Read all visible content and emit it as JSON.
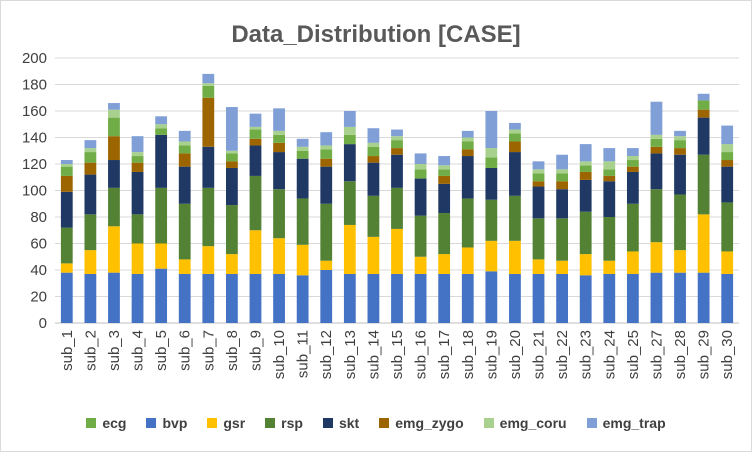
{
  "chart_data": {
    "type": "bar",
    "stacked": true,
    "title": "Data_Distribution [CASE]",
    "xlabel": "",
    "ylabel": "",
    "ylim": [
      0,
      200
    ],
    "yticks": [
      0,
      20,
      40,
      60,
      80,
      100,
      120,
      140,
      160,
      180,
      200
    ],
    "ytick_labels": [
      "0",
      "20",
      "40",
      "60",
      "80",
      "100",
      "120",
      "140",
      "160",
      "180",
      "200"
    ],
    "grid": true,
    "legend_position": "bottom",
    "categories": [
      "sub_1",
      "sub_2",
      "sub_3",
      "sub_4",
      "sub_5",
      "sub_6",
      "sub_7",
      "sub_8",
      "sub_9",
      "sub_10",
      "sub_11",
      "sub_12",
      "sub_13",
      "sub_14",
      "sub_15",
      "sub_16",
      "sub_17",
      "sub_18",
      "sub_19",
      "sub_20",
      "sub_21",
      "sub_22",
      "sub_23",
      "sub_24",
      "sub_25",
      "sub_27",
      "sub_28",
      "sub_29",
      "sub_30"
    ],
    "legend": [
      {
        "name": "ecg",
        "color": "#70ad47"
      },
      {
        "name": "bvp",
        "color": "#4472c4"
      },
      {
        "name": "gsr",
        "color": "#ffc000"
      },
      {
        "name": "rsp",
        "color": "#548235"
      },
      {
        "name": "skt",
        "color": "#203864"
      },
      {
        "name": "emg_zygo",
        "color": "#9c6500"
      },
      {
        "name": "emg_coru",
        "color": "#a9d18e"
      },
      {
        "name": "emg_trap",
        "color": "#7f9fd6"
      }
    ],
    "series": [
      {
        "name": "bvp",
        "color": "#4472c4",
        "values": [
          38,
          37,
          38,
          37,
          41,
          37,
          37,
          37,
          37,
          37,
          36,
          40,
          37,
          37,
          37,
          37,
          37,
          37,
          39,
          37,
          37,
          37,
          36,
          37,
          37,
          38,
          38,
          38,
          37
        ]
      },
      {
        "name": "gsr",
        "color": "#ffc000",
        "values": [
          7,
          18,
          35,
          23,
          19,
          11,
          21,
          15,
          33,
          27,
          23,
          7,
          37,
          28,
          34,
          13,
          15,
          20,
          23,
          25,
          11,
          10,
          16,
          10,
          17,
          23,
          17,
          44,
          17
        ]
      },
      {
        "name": "rsp",
        "color": "#548235",
        "values": [
          27,
          27,
          29,
          22,
          42,
          42,
          44,
          37,
          41,
          37,
          35,
          43,
          33,
          31,
          31,
          31,
          31,
          37,
          31,
          34,
          31,
          32,
          32,
          33,
          36,
          40,
          42,
          45,
          37
        ]
      },
      {
        "name": "skt",
        "color": "#203864",
        "values": [
          27,
          30,
          21,
          32,
          40,
          28,
          31,
          28,
          23,
          28,
          30,
          28,
          28,
          25,
          25,
          28,
          22,
          32,
          24,
          33,
          24,
          22,
          24,
          27,
          24,
          27,
          30,
          28,
          27
        ]
      },
      {
        "name": "emg_zygo",
        "color": "#9c6500",
        "values": [
          12,
          9,
          18,
          7,
          0,
          10,
          37,
          5,
          5,
          7,
          0,
          6,
          0,
          5,
          5,
          0,
          6,
          5,
          0,
          8,
          4,
          6,
          6,
          4,
          4,
          5,
          5,
          6,
          5
        ]
      },
      {
        "name": "ecg",
        "color": "#70ad47",
        "values": [
          7,
          8,
          14,
          5,
          5,
          6,
          9,
          6,
          7,
          6,
          6,
          7,
          7,
          7,
          6,
          7,
          5,
          6,
          8,
          6,
          6,
          6,
          5,
          5,
          5,
          6,
          6,
          7,
          6
        ]
      },
      {
        "name": "emg_coru",
        "color": "#a9d18e",
        "values": [
          2,
          3,
          6,
          3,
          3,
          3,
          2,
          2,
          2,
          3,
          3,
          3,
          6,
          3,
          3,
          4,
          3,
          3,
          7,
          3,
          3,
          3,
          3,
          6,
          3,
          3,
          3,
          0,
          6
        ]
      },
      {
        "name": "emg_trap",
        "color": "#7f9fd6",
        "values": [
          3,
          6,
          5,
          12,
          6,
          8,
          7,
          33,
          10,
          17,
          6,
          10,
          12,
          11,
          5,
          8,
          7,
          5,
          28,
          5,
          6,
          11,
          13,
          10,
          6,
          25,
          4,
          5,
          14
        ]
      }
    ]
  }
}
